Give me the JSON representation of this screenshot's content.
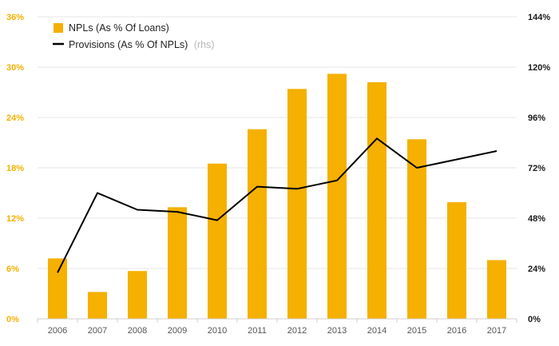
{
  "chart_data": {
    "type": "bar",
    "categories": [
      "2006",
      "2007",
      "2008",
      "2009",
      "2010",
      "2011",
      "2012",
      "2013",
      "2014",
      "2015",
      "2016",
      "2017"
    ],
    "series": [
      {
        "name": "NPLs (As % Of Loans)",
        "type": "bar",
        "axis": "left",
        "color": "#f5b000",
        "values": [
          7.2,
          3.2,
          5.7,
          13.3,
          18.5,
          22.6,
          27.4,
          29.2,
          28.2,
          21.4,
          13.9,
          7.0
        ]
      },
      {
        "name": "Provisions (As % Of NPLs)",
        "name_note": "(rhs)",
        "type": "line",
        "axis": "right",
        "color": "#000000",
        "values": [
          22,
          60,
          52,
          51,
          47,
          63,
          62,
          66,
          86,
          72,
          76,
          80
        ]
      }
    ],
    "y_left": {
      "min": 0,
      "max": 36,
      "ticks": [
        "0%",
        "6%",
        "12%",
        "18%",
        "24%",
        "30%",
        "36%"
      ],
      "tick_color": "#f5b000"
    },
    "y_right": {
      "min": 0,
      "max": 144,
      "ticks": [
        "0%",
        "24%",
        "48%",
        "72%",
        "96%",
        "120%",
        "144%"
      ],
      "tick_color": "#1a1a1a"
    },
    "grid": true,
    "legend_position": "top-left"
  }
}
